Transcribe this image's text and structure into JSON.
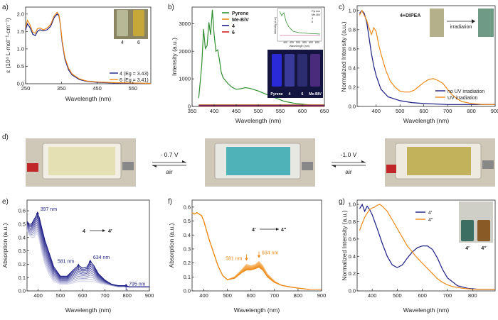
{
  "colors": {
    "navy": "#1c1c86",
    "orange": "#ee8a1a",
    "green": "#2f8f2f",
    "red": "#d62020",
    "pink": "#c0308a"
  },
  "chart_data": [
    {
      "id": "a",
      "panel_label": "a)",
      "type": "line",
      "xlabel": "Wavelength (nm)",
      "ylabel": "ε (10⁴ L·mol⁻¹·cm⁻¹)",
      "xlim": [
        250,
        600
      ],
      "ylim": [
        0,
        2.2
      ],
      "xticks": [
        250,
        350,
        450,
        550
      ],
      "yticks": [
        0.0,
        0.5,
        1.0,
        1.5,
        2.0
      ],
      "legend_position": "bottom-right",
      "inset_labels": [
        "4",
        "6"
      ],
      "series": [
        {
          "name": "4 (Eg = 3.43)",
          "color": "#1c1c86",
          "x": [
            250,
            255,
            262,
            270,
            277,
            283,
            290,
            300,
            310,
            320,
            330,
            338,
            343,
            347,
            352,
            360,
            370,
            380,
            400,
            420,
            450,
            500,
            550,
            600
          ],
          "y": [
            1.55,
            1.72,
            1.62,
            1.42,
            1.38,
            1.5,
            1.55,
            1.52,
            1.55,
            1.65,
            1.9,
            2.0,
            1.95,
            1.7,
            1.2,
            0.7,
            0.4,
            0.25,
            0.12,
            0.07,
            0.04,
            0.02,
            0.01,
            0.01
          ]
        },
        {
          "name": "6 (Eg = 3.41)",
          "color": "#ee8a1a",
          "x": [
            250,
            255,
            262,
            270,
            277,
            283,
            290,
            300,
            310,
            320,
            330,
            338,
            343,
            347,
            352,
            360,
            370,
            380,
            400,
            420,
            450,
            500,
            550,
            600
          ],
          "y": [
            1.62,
            1.82,
            1.7,
            1.48,
            1.45,
            1.58,
            1.6,
            1.55,
            1.6,
            1.7,
            1.95,
            2.05,
            1.98,
            1.72,
            1.25,
            0.75,
            0.45,
            0.28,
            0.14,
            0.08,
            0.05,
            0.03,
            0.02,
            0.01
          ]
        }
      ]
    },
    {
      "id": "b",
      "panel_label": "b)",
      "type": "line",
      "xlabel": "Wavelength (nm)",
      "ylabel": "Intensity (a.u.)",
      "xlim": [
        350,
        650
      ],
      "ylim": [
        0,
        3600
      ],
      "xticks": [
        350,
        400,
        450,
        500,
        550,
        600,
        650
      ],
      "yticks": [
        0,
        1000,
        2000,
        3000
      ],
      "legend_position": "top-left",
      "inset_labels": [
        "Pyrene",
        "4",
        "6",
        "Me-BIV"
      ],
      "spectrum_inset": {
        "xlabel": "Wavelength (nm)",
        "ylabel": "Intensity (a.u.)",
        "xticks": [
          400,
          450,
          500,
          550,
          600,
          650
        ],
        "legend": [
          "Pyrene",
          "Me-BiV",
          "4",
          "6"
        ]
      },
      "series": [
        {
          "name": "Pyrene",
          "color": "#2f8f2f",
          "x": [
            365,
            372,
            376,
            380,
            384,
            388,
            392,
            396,
            400,
            404,
            408,
            412,
            416,
            420,
            430,
            440,
            450,
            460,
            470,
            480,
            490,
            500,
            520,
            540,
            560,
            580,
            600,
            620,
            650
          ],
          "y": [
            300,
            1500,
            2800,
            2100,
            2200,
            3050,
            2600,
            3500,
            2600,
            2000,
            2050,
            1700,
            1250,
            1050,
            850,
            700,
            620,
            640,
            680,
            660,
            610,
            560,
            430,
            300,
            180,
            120,
            80,
            50,
            30
          ]
        },
        {
          "name": "Me-BiV",
          "color": "#ee8a1a",
          "x": [
            365,
            400,
            450,
            500,
            550,
            600,
            650
          ],
          "y": [
            60,
            60,
            60,
            60,
            60,
            60,
            60
          ]
        },
        {
          "name": "4",
          "color": "#1c1c86",
          "x": [
            365,
            400,
            450,
            500,
            550,
            600,
            650
          ],
          "y": [
            40,
            40,
            40,
            40,
            40,
            40,
            40
          ]
        },
        {
          "name": "6",
          "color": "#d62020",
          "x": [
            365,
            400,
            450,
            500,
            550,
            600,
            650
          ],
          "y": [
            20,
            20,
            20,
            20,
            20,
            20,
            20
          ]
        }
      ]
    },
    {
      "id": "c",
      "panel_label": "c)",
      "type": "line",
      "xlabel": "Wavelength (nm)",
      "ylabel": "Normalized Intensity (a.u.)",
      "xlim": [
        320,
        900
      ],
      "ylim": [
        0,
        1.05
      ],
      "xticks": [
        400,
        500,
        600,
        700,
        800,
        900
      ],
      "yticks": [
        0.0,
        0.2,
        0.4,
        0.6,
        0.8,
        1.0
      ],
      "legend_position": "bottom-right",
      "inset_labels": [
        "4+DIPEA",
        "irradiation"
      ],
      "series": [
        {
          "name": "no UV irradiation",
          "color": "#1c1c86",
          "x": [
            330,
            340,
            350,
            360,
            370,
            380,
            390,
            400,
            420,
            450,
            500,
            550,
            600,
            700,
            800,
            900
          ],
          "y": [
            0.97,
            1.0,
            0.97,
            0.88,
            0.72,
            0.55,
            0.42,
            0.32,
            0.18,
            0.1,
            0.06,
            0.04,
            0.03,
            0.02,
            0.02,
            0.02
          ]
        },
        {
          "name": "UV irradiation",
          "color": "#ee8a1a",
          "x": [
            330,
            340,
            350,
            360,
            370,
            380,
            390,
            400,
            410,
            420,
            440,
            460,
            480,
            500,
            520,
            540,
            560,
            580,
            600,
            620,
            640,
            660,
            680,
            700,
            720,
            740,
            760,
            800,
            850,
            900
          ],
          "y": [
            0.95,
            1.0,
            0.95,
            0.9,
            0.82,
            0.75,
            0.82,
            0.78,
            0.65,
            0.55,
            0.38,
            0.26,
            0.2,
            0.16,
            0.15,
            0.15,
            0.17,
            0.21,
            0.25,
            0.28,
            0.29,
            0.27,
            0.24,
            0.18,
            0.12,
            0.08,
            0.05,
            0.03,
            0.02,
            0.02
          ]
        }
      ]
    },
    {
      "id": "e",
      "panel_label": "e)",
      "type": "line",
      "xlabel": "Wavelength (nm)",
      "ylabel": "Absorption (a.u.)",
      "xlim": [
        350,
        900
      ],
      "ylim": [
        0,
        0.68
      ],
      "xticks": [
        400,
        500,
        600,
        700,
        800,
        900
      ],
      "yticks": [
        0.0,
        0.1,
        0.2,
        0.3,
        0.4,
        0.5,
        0.6
      ],
      "transition_left": "4",
      "transition_right": "4′",
      "annotations": [
        "397 nm",
        "581 nm",
        "634 nm",
        "795 nm"
      ],
      "series_family": {
        "count": 10,
        "color_start": "#d6d6ec",
        "color_end": "#1c1c86",
        "x": [
          350,
          360,
          370,
          380,
          390,
          397,
          405,
          415,
          430,
          450,
          470,
          500,
          530,
          560,
          581,
          600,
          620,
          634,
          650,
          670,
          700,
          730,
          760,
          780,
          795,
          810,
          850,
          900
        ],
        "first": [
          0.45,
          0.42,
          0.4,
          0.4,
          0.42,
          0.43,
          0.38,
          0.3,
          0.2,
          0.12,
          0.07,
          0.05,
          0.05,
          0.06,
          0.07,
          0.07,
          0.07,
          0.07,
          0.07,
          0.06,
          0.05,
          0.04,
          0.03,
          0.03,
          0.03,
          0.03,
          0.03,
          0.03
        ],
        "last": [
          0.52,
          0.5,
          0.5,
          0.53,
          0.56,
          0.58,
          0.55,
          0.48,
          0.38,
          0.28,
          0.18,
          0.11,
          0.11,
          0.16,
          0.19,
          0.17,
          0.18,
          0.22,
          0.19,
          0.13,
          0.08,
          0.05,
          0.04,
          0.04,
          0.04,
          0.03,
          0.03,
          0.03
        ]
      }
    },
    {
      "id": "f",
      "panel_label": "f)",
      "type": "line",
      "xlabel": "Wavelength (nm)",
      "ylabel": "Absorption (a.u.)",
      "xlim": [
        350,
        900
      ],
      "ylim": [
        0,
        0.65
      ],
      "xticks": [
        400,
        500,
        600,
        700,
        800,
        900
      ],
      "yticks": [
        0.0,
        0.1,
        0.2,
        0.3,
        0.4,
        0.5,
        0.6
      ],
      "transition_left": "4′",
      "transition_right": "4″",
      "annotations": [
        "581 nm",
        "634 nm"
      ],
      "series_family": {
        "count": 8,
        "color_start": "#f7c07a",
        "color_end": "#ee8a1a",
        "x": [
          350,
          360,
          370,
          380,
          390,
          400,
          410,
          420,
          440,
          460,
          480,
          500,
          530,
          560,
          581,
          600,
          620,
          634,
          650,
          670,
          700,
          730,
          760,
          800,
          850,
          900
        ],
        "first": [
          0.56,
          0.55,
          0.56,
          0.55,
          0.54,
          0.5,
          0.44,
          0.38,
          0.28,
          0.18,
          0.11,
          0.08,
          0.1,
          0.15,
          0.19,
          0.18,
          0.19,
          0.21,
          0.18,
          0.12,
          0.07,
          0.04,
          0.03,
          0.02,
          0.01,
          0.01
        ],
        "last": [
          0.56,
          0.55,
          0.56,
          0.55,
          0.54,
          0.5,
          0.44,
          0.38,
          0.28,
          0.18,
          0.11,
          0.08,
          0.09,
          0.13,
          0.15,
          0.15,
          0.16,
          0.17,
          0.15,
          0.1,
          0.06,
          0.04,
          0.03,
          0.02,
          0.01,
          0.01
        ]
      }
    },
    {
      "id": "g",
      "panel_label": "g)",
      "type": "line",
      "xlabel": "Wavelength (nm)",
      "ylabel": "Normalized Intensity (a.u.)",
      "xlim": [
        340,
        890
      ],
      "ylim": [
        0,
        1.05
      ],
      "xticks": [
        400,
        500,
        600,
        700,
        800
      ],
      "yticks": [
        0.0,
        0.2,
        0.4,
        0.6,
        0.8,
        1.0
      ],
      "legend_position": "top-center",
      "inset_labels": [
        "4′",
        "4″"
      ],
      "series": [
        {
          "name": "4′",
          "color": "#1c1c86",
          "x": [
            350,
            360,
            370,
            380,
            390,
            400,
            410,
            420,
            440,
            460,
            480,
            500,
            520,
            540,
            560,
            580,
            600,
            620,
            640,
            660,
            680,
            700,
            740,
            780,
            820,
            860,
            890
          ],
          "y": [
            0.95,
            1.0,
            0.92,
            0.98,
            0.94,
            0.88,
            0.8,
            0.72,
            0.55,
            0.4,
            0.3,
            0.27,
            0.3,
            0.38,
            0.45,
            0.5,
            0.52,
            0.52,
            0.48,
            0.38,
            0.25,
            0.15,
            0.06,
            0.03,
            0.02,
            0.02,
            0.02
          ]
        },
        {
          "name": "4″",
          "color": "#ee8a1a",
          "x": [
            350,
            360,
            370,
            380,
            390,
            400,
            410,
            420,
            430,
            440,
            460,
            480,
            500,
            520,
            540,
            560,
            580,
            600,
            620,
            640,
            660,
            680,
            700,
            720,
            740,
            760,
            800,
            850,
            890
          ],
          "y": [
            0.7,
            0.78,
            0.85,
            0.9,
            0.94,
            0.96,
            0.97,
            0.99,
            1.0,
            0.98,
            0.92,
            0.82,
            0.72,
            0.62,
            0.52,
            0.45,
            0.38,
            0.32,
            0.26,
            0.2,
            0.14,
            0.1,
            0.07,
            0.05,
            0.04,
            0.03,
            0.02,
            0.02,
            0.02
          ]
        }
      ]
    }
  ],
  "panel_d": {
    "panel_label": "d)",
    "arrow_left_top": "- 0.7 V",
    "arrow_left_bottom": "air",
    "arrow_right_top": "-1.0 V",
    "arrow_right_bottom": "air",
    "film_colors": [
      "#e4e0b4",
      "#4fb2b8",
      "#c2b25c"
    ]
  }
}
